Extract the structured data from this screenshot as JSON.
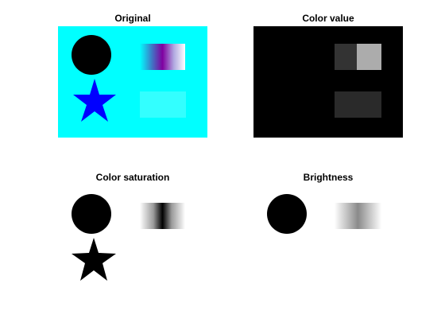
{
  "figure": {
    "panels": [
      {
        "title": "Original"
      },
      {
        "title": "Color value"
      },
      {
        "title": "Color saturation"
      },
      {
        "title": "Brightness"
      }
    ]
  },
  "colors": {
    "figure_bg": "#ffffff",
    "cyan_background": "#00ffff",
    "circle": "#000000",
    "star_blue": "#0000ff",
    "light_cyan_rect": "#33ffff",
    "value_bg": "#000000",
    "value_dark_gray": "#333333",
    "value_light_gray": "#acacac",
    "value_mid_gray": "#2a2a2a"
  }
}
